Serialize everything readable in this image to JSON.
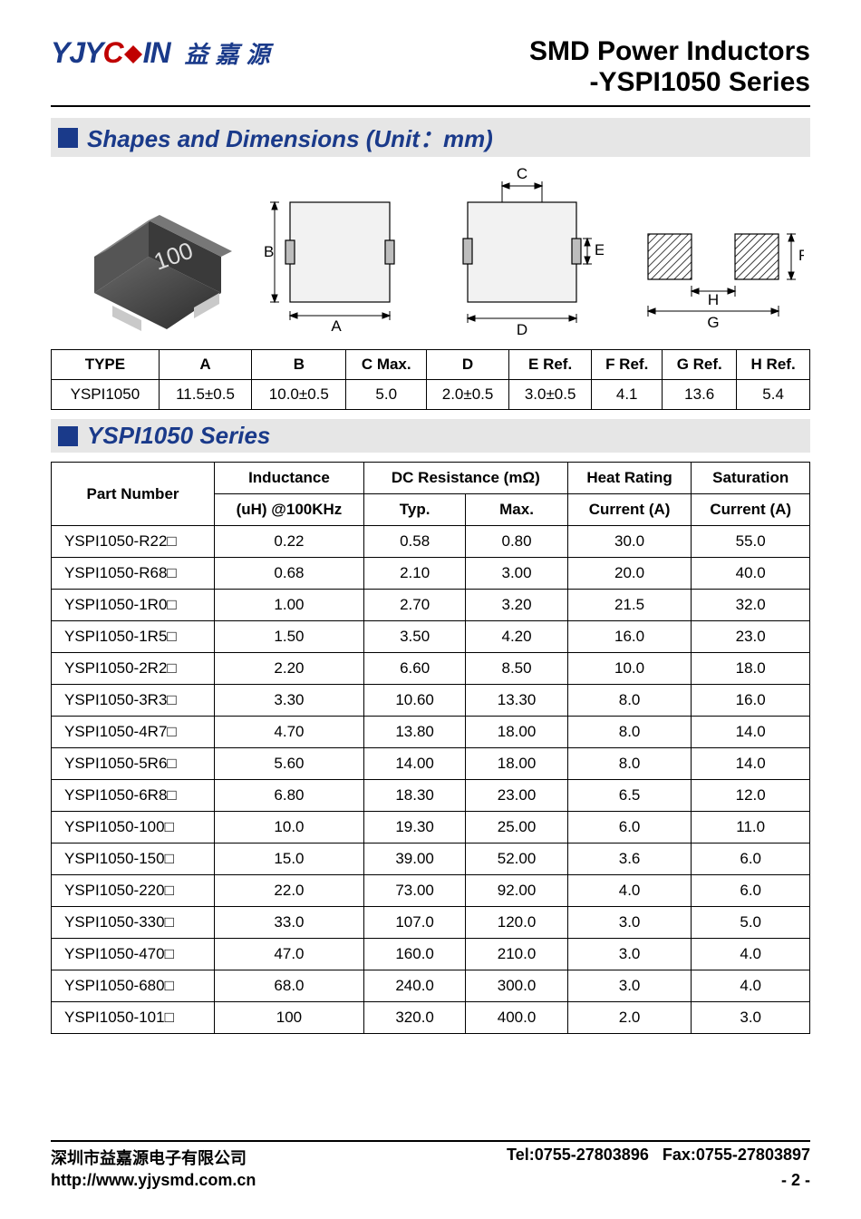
{
  "header": {
    "logo_text_1": "YJY",
    "logo_text_2": "C",
    "logo_text_3": "IN",
    "logo_cn": "益嘉源",
    "title_line1": "SMD Power Inductors",
    "title_line2": "-YSPI1050 Series"
  },
  "section1": {
    "title": "Shapes and Dimensions (Unit：mm)",
    "labels": {
      "A": "A",
      "B": "B",
      "C": "C",
      "D": "D",
      "E": "E",
      "F": "F",
      "G": "G",
      "H": "H"
    }
  },
  "dim_table": {
    "headers": [
      "TYPE",
      "A",
      "B",
      "C Max.",
      "D",
      "E Ref.",
      "F Ref.",
      "G Ref.",
      "H Ref."
    ],
    "row": [
      "YSPI1050",
      "11.5±0.5",
      "10.0±0.5",
      "5.0",
      "2.0±0.5",
      "3.0±0.5",
      "4.1",
      "13.6",
      "5.4"
    ]
  },
  "section2": {
    "title": "YSPI1050 Series"
  },
  "series_table": {
    "head_row1": [
      "Part Number",
      "Inductance",
      "DC Resistance (mΩ)",
      "Heat Rating",
      "Saturation"
    ],
    "head_row2": [
      "(uH) @100KHz",
      "Typ.",
      "Max.",
      "Current (A)",
      "Current (A)"
    ],
    "rows": [
      [
        "YSPI1050-R22□",
        "0.22",
        "0.58",
        "0.80",
        "30.0",
        "55.0"
      ],
      [
        "YSPI1050-R68□",
        "0.68",
        "2.10",
        "3.00",
        "20.0",
        "40.0"
      ],
      [
        "YSPI1050-1R0□",
        "1.00",
        "2.70",
        "3.20",
        "21.5",
        "32.0"
      ],
      [
        "YSPI1050-1R5□",
        "1.50",
        "3.50",
        "4.20",
        "16.0",
        "23.0"
      ],
      [
        "YSPI1050-2R2□",
        "2.20",
        "6.60",
        "8.50",
        "10.0",
        "18.0"
      ],
      [
        "YSPI1050-3R3□",
        "3.30",
        "10.60",
        "13.30",
        "8.0",
        "16.0"
      ],
      [
        "YSPI1050-4R7□",
        "4.70",
        "13.80",
        "18.00",
        "8.0",
        "14.0"
      ],
      [
        "YSPI1050-5R6□",
        "5.60",
        "14.00",
        "18.00",
        "8.0",
        "14.0"
      ],
      [
        "YSPI1050-6R8□",
        "6.80",
        "18.30",
        "23.00",
        "6.5",
        "12.0"
      ],
      [
        "YSPI1050-100□",
        "10.0",
        "19.30",
        "25.00",
        "6.0",
        "11.0"
      ],
      [
        "YSPI1050-150□",
        "15.0",
        "39.00",
        "52.00",
        "3.6",
        "6.0"
      ],
      [
        "YSPI1050-220□",
        "22.0",
        "73.00",
        "92.00",
        "4.0",
        "6.0"
      ],
      [
        "YSPI1050-330□",
        "33.0",
        "107.0",
        "120.0",
        "3.0",
        "5.0"
      ],
      [
        "YSPI1050-470□",
        "47.0",
        "160.0",
        "210.0",
        "3.0",
        "4.0"
      ],
      [
        "YSPI1050-680□",
        "68.0",
        "240.0",
        "300.0",
        "3.0",
        "4.0"
      ],
      [
        "YSPI1050-101□",
        "100",
        "320.0",
        "400.0",
        "2.0",
        "3.0"
      ]
    ]
  },
  "footer": {
    "company": "深圳市益嘉源电子有限公司",
    "tel": "Tel:0755-27803896",
    "fax": "Fax:0755-27803897",
    "url": "http://www.yjysmd.com.cn",
    "page": "- 2 -"
  },
  "style": {
    "brand_blue": "#1a3a8a",
    "brand_red": "#c00000",
    "section_bg": "#e6e6e6",
    "border": "#000000",
    "text": "#000000",
    "font_title": 30,
    "font_section": 26,
    "font_table": 17,
    "font_footer": 18
  }
}
